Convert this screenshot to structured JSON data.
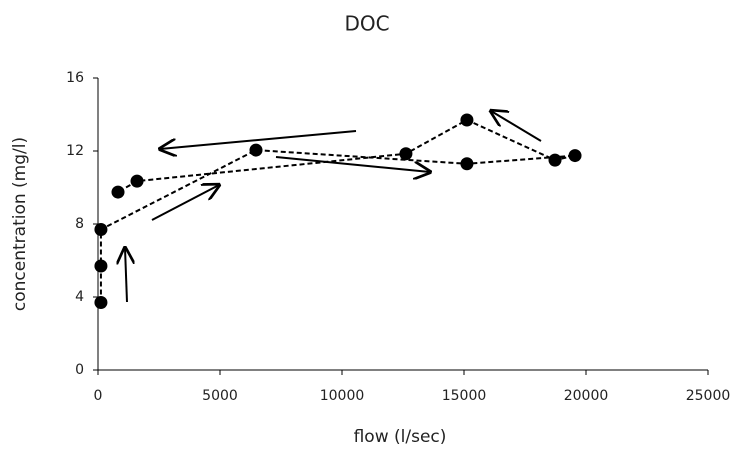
{
  "chart_data": {
    "type": "line",
    "title": "DOC",
    "x_label": "flow (l/sec)",
    "y_label": "concentration (mg/l)",
    "x": [
      120,
      120,
      120,
      6475,
      15120,
      19550,
      18730,
      15120,
      12620,
      1600,
      820
    ],
    "series": [
      {
        "name": "DOC",
        "color": "#000000",
        "values": [
          3.7,
          5.7,
          7.7,
          12.05,
          11.3,
          11.75,
          11.5,
          13.7,
          11.85,
          10.35,
          9.75
        ]
      }
    ],
    "xlim": [
      0,
      25000
    ],
    "xticks": [
      0,
      5000,
      10000,
      15000,
      20000,
      25000
    ],
    "ylim": [
      0,
      16
    ],
    "yticks": [
      0,
      4,
      8,
      12,
      16
    ]
  }
}
